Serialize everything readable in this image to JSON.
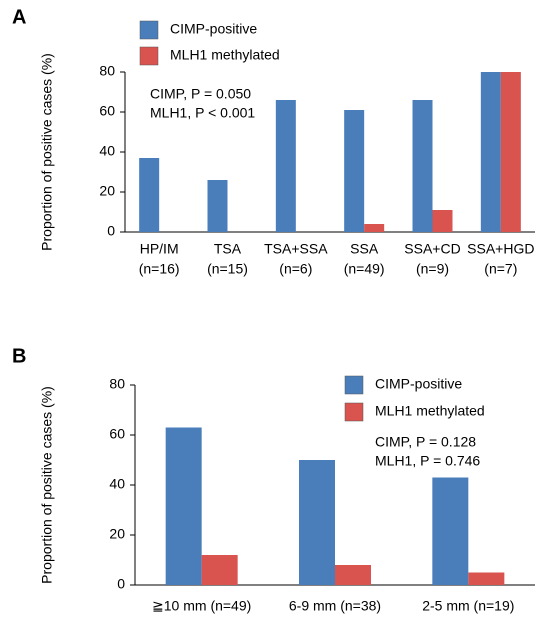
{
  "chart_data": [
    {
      "type": "bar",
      "panel_label": "A",
      "y_label": "Proportion of positive cases (%)",
      "categories": [
        [
          "HP/IM",
          "(n=16)"
        ],
        [
          "TSA",
          "(n=15)"
        ],
        [
          "TSA+SSA",
          "(n=6)"
        ],
        [
          "SSA",
          "(n=49)"
        ],
        [
          "SSA+CD",
          "(n=9)"
        ],
        [
          "SSA+HGD",
          "(n=7)"
        ]
      ],
      "series": [
        {
          "name": "CIMP-positive",
          "color": "#4a7ebb",
          "values": [
            37,
            26,
            66,
            61,
            66,
            80
          ]
        },
        {
          "name": "MLH1 methylated",
          "color": "#d9534f",
          "values": [
            0,
            0,
            0,
            4,
            11,
            80
          ]
        }
      ],
      "annotations": [
        "CIMP, P = 0.050",
        "MLH1, P < 0.001"
      ],
      "ylim": [
        0,
        80
      ],
      "yticks": [
        0,
        20,
        40,
        60,
        80
      ]
    },
    {
      "type": "bar",
      "panel_label": "B",
      "y_label": "Proportion of positive cases (%)",
      "categories": [
        [
          "≧10 mm (n=49)"
        ],
        [
          "6-9 mm (n=38)"
        ],
        [
          "2-5 mm (n=19)"
        ]
      ],
      "series": [
        {
          "name": "CIMP-positive",
          "color": "#4a7ebb",
          "values": [
            63,
            50,
            43
          ]
        },
        {
          "name": "MLH1 methylated",
          "color": "#d9534f",
          "values": [
            12,
            8,
            5
          ]
        }
      ],
      "annotations": [
        "CIMP, P = 0.128",
        "MLH1, P = 0.746"
      ],
      "ylim": [
        0,
        80
      ],
      "yticks": [
        0,
        20,
        40,
        60,
        80
      ]
    }
  ]
}
